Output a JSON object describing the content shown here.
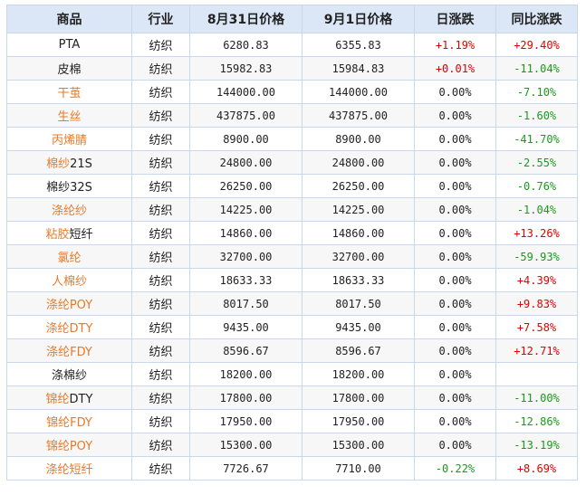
{
  "table": {
    "headers": [
      "商品",
      "行业",
      "8月31日价格",
      "9月1日价格",
      "日涨跌",
      "同比涨跌"
    ],
    "rows": [
      {
        "name": "PTA",
        "name_tail": "",
        "name_color": "default",
        "industry": "纺织",
        "price_aug31": "6280.83",
        "price_sep1": "6355.83",
        "daily": "+1.19%",
        "daily_dir": "up",
        "yoy": "+29.40%",
        "yoy_dir": "up"
      },
      {
        "name": "皮棉",
        "name_tail": "",
        "name_color": "default",
        "industry": "纺织",
        "price_aug31": "15982.83",
        "price_sep1": "15984.83",
        "daily": "+0.01%",
        "daily_dir": "up",
        "yoy": "-11.04%",
        "yoy_dir": "down"
      },
      {
        "name": "干茧",
        "name_tail": "",
        "name_color": "orange",
        "industry": "纺织",
        "price_aug31": "144000.00",
        "price_sep1": "144000.00",
        "daily": "0.00%",
        "daily_dir": "flat",
        "yoy": "-7.10%",
        "yoy_dir": "down"
      },
      {
        "name": "生丝",
        "name_tail": "",
        "name_color": "orange",
        "industry": "纺织",
        "price_aug31": "437875.00",
        "price_sep1": "437875.00",
        "daily": "0.00%",
        "daily_dir": "flat",
        "yoy": "-1.60%",
        "yoy_dir": "down"
      },
      {
        "name": "丙烯腈",
        "name_tail": "",
        "name_color": "orange",
        "industry": "纺织",
        "price_aug31": "8900.00",
        "price_sep1": "8900.00",
        "daily": "0.00%",
        "daily_dir": "flat",
        "yoy": "-41.70%",
        "yoy_dir": "down"
      },
      {
        "name": "棉纱",
        "name_tail": "21S",
        "name_color": "orange-head",
        "industry": "纺织",
        "price_aug31": "24800.00",
        "price_sep1": "24800.00",
        "daily": "0.00%",
        "daily_dir": "flat",
        "yoy": "-2.55%",
        "yoy_dir": "down"
      },
      {
        "name": "棉纱32S",
        "name_tail": "",
        "name_color": "default",
        "industry": "纺织",
        "price_aug31": "26250.00",
        "price_sep1": "26250.00",
        "daily": "0.00%",
        "daily_dir": "flat",
        "yoy": "-0.76%",
        "yoy_dir": "down"
      },
      {
        "name": "涤纶纱",
        "name_tail": "",
        "name_color": "orange",
        "industry": "纺织",
        "price_aug31": "14225.00",
        "price_sep1": "14225.00",
        "daily": "0.00%",
        "daily_dir": "flat",
        "yoy": "-1.04%",
        "yoy_dir": "down"
      },
      {
        "name": "粘胶",
        "name_tail": "短纤",
        "name_color": "orange-head",
        "industry": "纺织",
        "price_aug31": "14860.00",
        "price_sep1": "14860.00",
        "daily": "0.00%",
        "daily_dir": "flat",
        "yoy": "+13.26%",
        "yoy_dir": "up"
      },
      {
        "name": "氯纶",
        "name_tail": "",
        "name_color": "orange",
        "industry": "纺织",
        "price_aug31": "32700.00",
        "price_sep1": "32700.00",
        "daily": "0.00%",
        "daily_dir": "flat",
        "yoy": "-59.93%",
        "yoy_dir": "down"
      },
      {
        "name": "人棉纱",
        "name_tail": "",
        "name_color": "orange",
        "industry": "纺织",
        "price_aug31": "18633.33",
        "price_sep1": "18633.33",
        "daily": "0.00%",
        "daily_dir": "flat",
        "yoy": "+4.39%",
        "yoy_dir": "up"
      },
      {
        "name": "涤纶POY",
        "name_tail": "",
        "name_color": "orange",
        "industry": "纺织",
        "price_aug31": "8017.50",
        "price_sep1": "8017.50",
        "daily": "0.00%",
        "daily_dir": "flat",
        "yoy": "+9.83%",
        "yoy_dir": "up"
      },
      {
        "name": "涤纶DTY",
        "name_tail": "",
        "name_color": "orange",
        "industry": "纺织",
        "price_aug31": "9435.00",
        "price_sep1": "9435.00",
        "daily": "0.00%",
        "daily_dir": "flat",
        "yoy": "+7.58%",
        "yoy_dir": "up"
      },
      {
        "name": "涤纶FDY",
        "name_tail": "",
        "name_color": "orange",
        "industry": "纺织",
        "price_aug31": "8596.67",
        "price_sep1": "8596.67",
        "daily": "0.00%",
        "daily_dir": "flat",
        "yoy": "+12.71%",
        "yoy_dir": "up"
      },
      {
        "name": "涤棉纱",
        "name_tail": "",
        "name_color": "default",
        "industry": "纺织",
        "price_aug31": "18200.00",
        "price_sep1": "18200.00",
        "daily": "0.00%",
        "daily_dir": "flat",
        "yoy": "",
        "yoy_dir": "flat"
      },
      {
        "name": "锦纶",
        "name_tail": "DTY",
        "name_color": "orange-head",
        "industry": "纺织",
        "price_aug31": "17800.00",
        "price_sep1": "17800.00",
        "daily": "0.00%",
        "daily_dir": "flat",
        "yoy": "-11.00%",
        "yoy_dir": "down"
      },
      {
        "name": "锦纶FDY",
        "name_tail": "",
        "name_color": "orange",
        "industry": "纺织",
        "price_aug31": "17950.00",
        "price_sep1": "17950.00",
        "daily": "0.00%",
        "daily_dir": "flat",
        "yoy": "-12.86%",
        "yoy_dir": "down"
      },
      {
        "name": "锦纶POY",
        "name_tail": "",
        "name_color": "orange",
        "industry": "纺织",
        "price_aug31": "15300.00",
        "price_sep1": "15300.00",
        "daily": "0.00%",
        "daily_dir": "flat",
        "yoy": "-13.19%",
        "yoy_dir": "down"
      },
      {
        "name": "涤纶短纤",
        "name_tail": "",
        "name_color": "orange",
        "industry": "纺织",
        "price_aug31": "7726.67",
        "price_sep1": "7710.00",
        "daily": "-0.22%",
        "daily_dir": "down",
        "yoy": "+8.69%",
        "yoy_dir": "up"
      }
    ]
  },
  "colors": {
    "header_bg": "#dbe7f6",
    "border": "#c9d7ea",
    "link_orange": "#e77a2a",
    "up_red": "#e00000",
    "down_green": "#1a9a1a"
  }
}
